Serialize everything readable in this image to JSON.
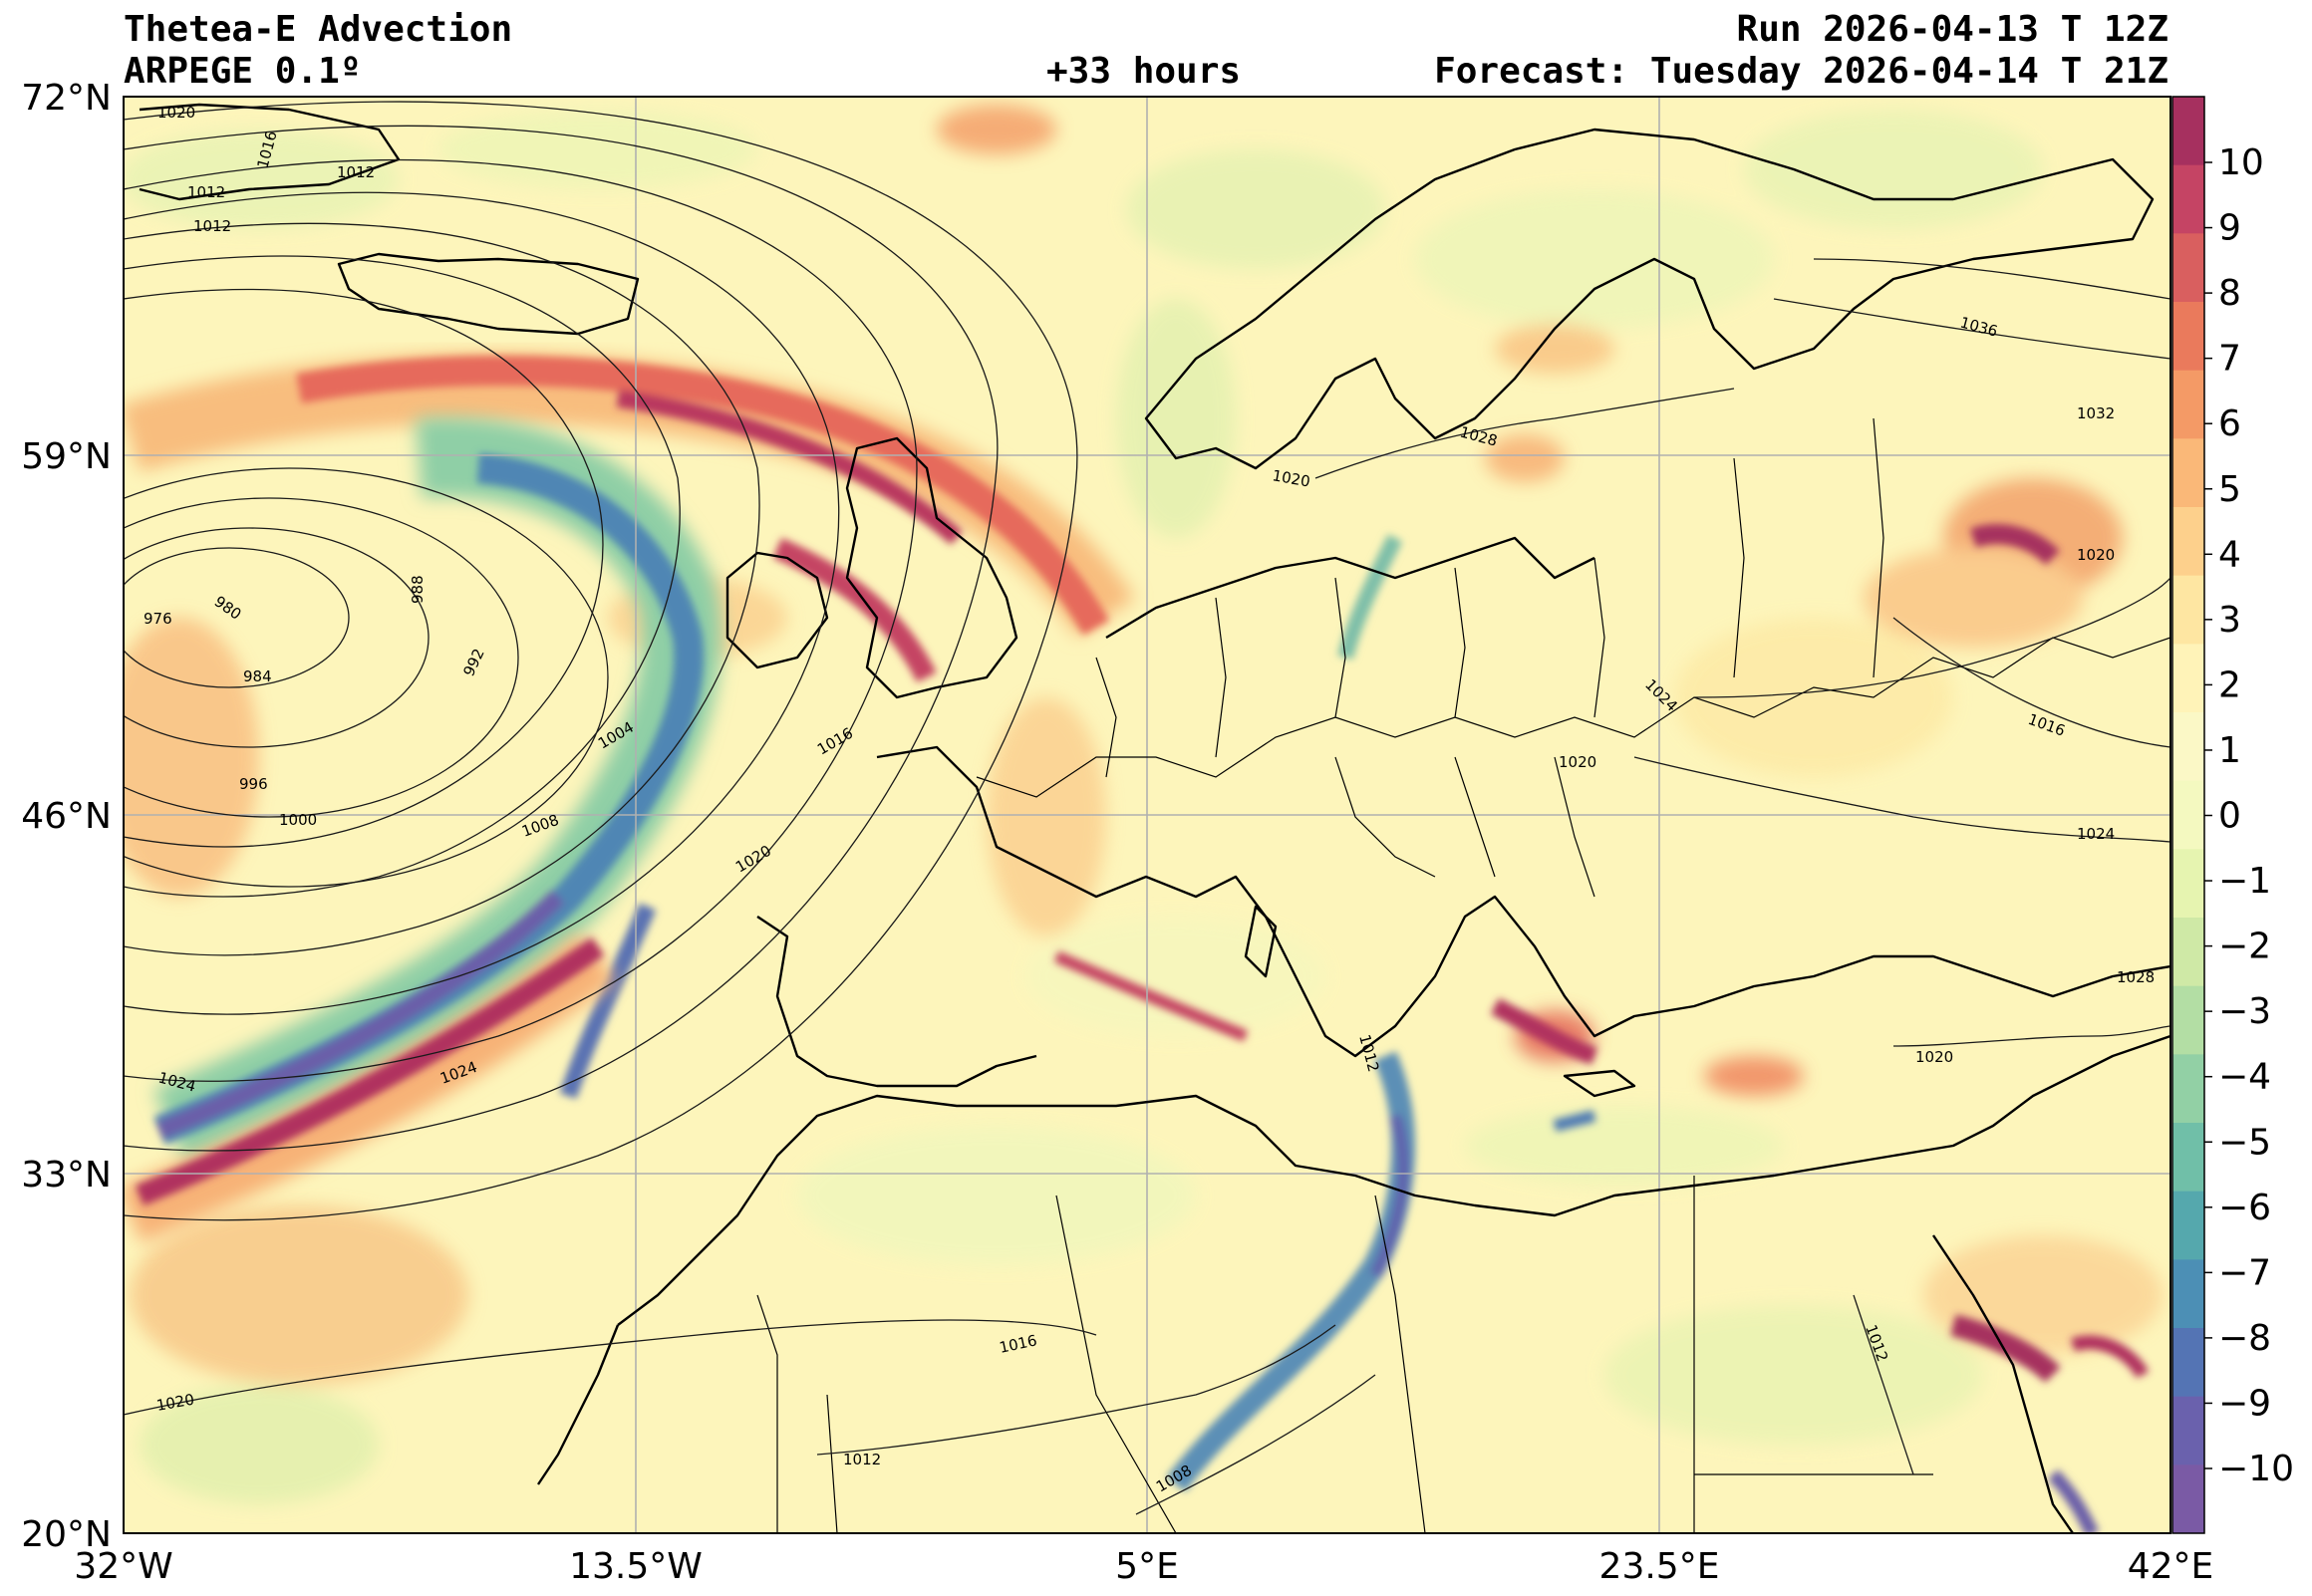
{
  "header": {
    "title": "Thetea-E Advection",
    "model": "ARPEGE 0.1º",
    "lead": "+33 hours",
    "run": "Run 2026-04-13 T 12Z",
    "forecast": "Forecast: Tuesday 2026-04-14 T 21Z"
  },
  "axes": {
    "lat_labels": [
      "72°N",
      "59°N",
      "46°N",
      "33°N",
      "20°N"
    ],
    "lon_labels": [
      "32°W",
      "13.5°W",
      "5°E",
      "23.5°E",
      "42°E"
    ],
    "grid": true
  },
  "colorbar": {
    "ticks": [
      "10",
      "9",
      "8",
      "7",
      "6",
      "5",
      "4",
      "3",
      "2",
      "1",
      "0",
      "−1",
      "−2",
      "−3",
      "−4",
      "−5",
      "−6",
      "−7",
      "−8",
      "−9",
      "−10"
    ],
    "colors": [
      "#a6305f",
      "#c54464",
      "#d95f5f",
      "#ea7a5c",
      "#f49a66",
      "#fab878",
      "#fdd08c",
      "#fee6a2",
      "#fff3b8",
      "#fbf8c6",
      "#f4f9c0",
      "#e6f4b0",
      "#cfe9a6",
      "#b3dea4",
      "#92d0a5",
      "#70bfa8",
      "#55a8ad",
      "#4c8fb5",
      "#5474b4",
      "#6a61ad",
      "#7a5aa5"
    ]
  },
  "isobar_labels": [
    "1020",
    "1016",
    "1012",
    "1012",
    "1012",
    "976",
    "980",
    "984",
    "988",
    "992",
    "996",
    "1000",
    "1004",
    "1008",
    "1016",
    "1020",
    "1024",
    "1024",
    "1020",
    "1016",
    "1012",
    "1008",
    "1020",
    "1028",
    "1036",
    "1032",
    "1024",
    "1020",
    "1016",
    "1020",
    "1024",
    "1028",
    "1020",
    "1012",
    "1012"
  ]
}
